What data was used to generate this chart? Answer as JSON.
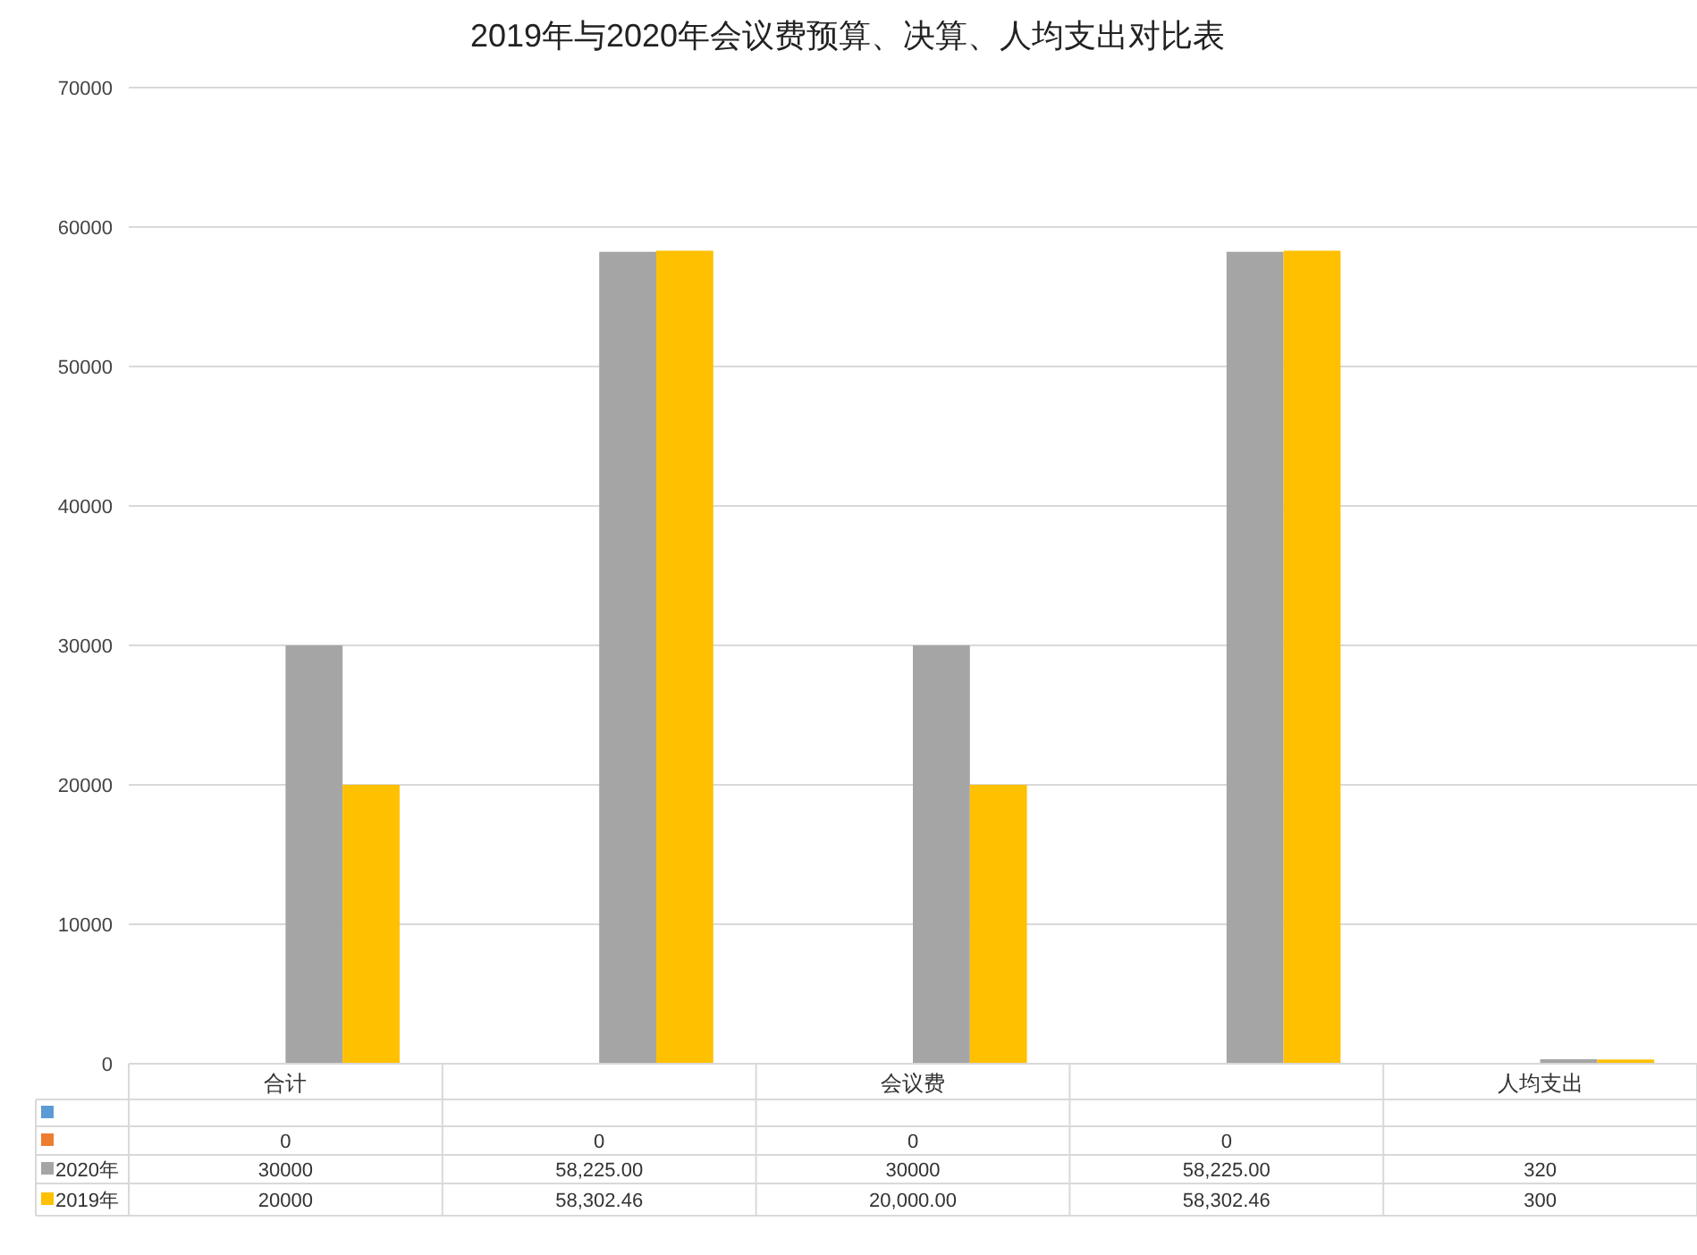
{
  "chart_data": {
    "type": "bar",
    "title": "2019年与2020年会议费预算、决算、人均支出对比表",
    "categories": [
      "合计",
      null,
      "会议费",
      null,
      "人均支出"
    ],
    "series": [
      {
        "color": "#5b9bd5",
        "values": [
          null,
          null,
          null,
          null,
          null
        ]
      },
      {
        "color": "#ed7d31",
        "values": [
          0,
          0,
          0,
          0,
          null
        ],
        "value_labels": [
          "0",
          "0",
          "0",
          "0",
          null
        ]
      },
      {
        "name": "2020年",
        "color": "#a5a5a5",
        "values": [
          30000,
          58225,
          30000,
          58225,
          320
        ],
        "value_labels": [
          "30000",
          "58,225.00",
          "30000",
          "58,225.00",
          "320"
        ]
      },
      {
        "name": "2019年",
        "color": "#ffc000",
        "values": [
          20000,
          58302.46,
          20000,
          58302.46,
          300
        ],
        "value_labels": [
          "20000",
          "58,302.46",
          "20,000.00",
          "58,302.46",
          "300"
        ]
      }
    ],
    "ylim": [
      0,
      70000
    ],
    "yticks": [
      0,
      10000,
      20000,
      30000,
      40000,
      50000,
      60000,
      70000
    ],
    "grid": "y",
    "legend": "bottom"
  }
}
